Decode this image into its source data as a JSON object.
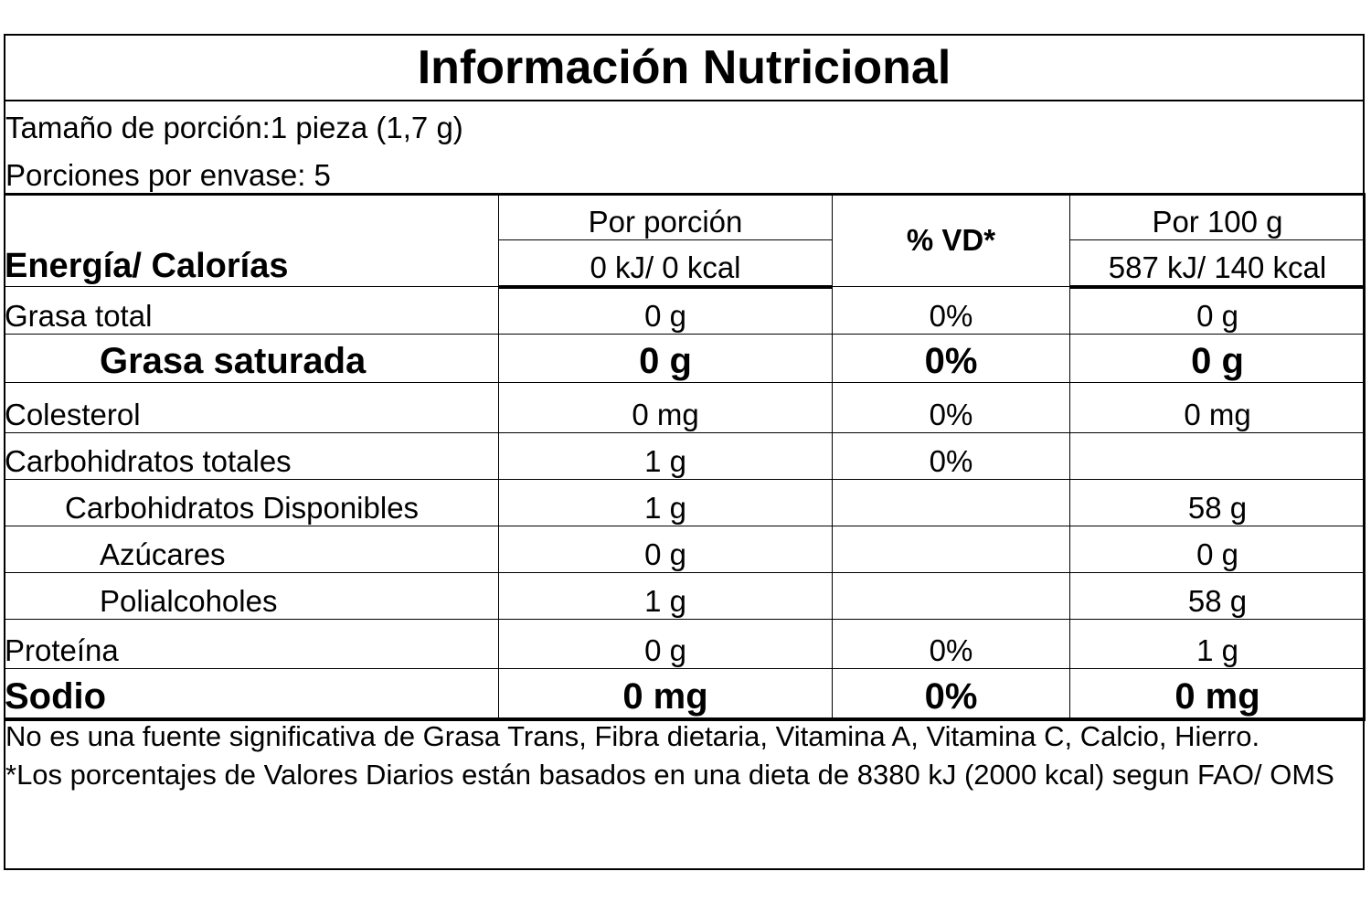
{
  "title": "Información Nutricional",
  "serving": {
    "size": "Tamaño de porción:1 pieza (1,7 g)",
    "per_container": "Porciones por envase: 5"
  },
  "headers": {
    "per_portion": "Por porción",
    "vd": "% VD*",
    "per_100": "Por 100 g",
    "energy_label": "Energía/ Calorías",
    "energy_portion": "0 kJ/ 0 kcal",
    "energy_100": "587 kJ/ 140 kcal"
  },
  "rows": [
    {
      "name": "Grasa total",
      "portion": "0 g",
      "vd": "0%",
      "per100": "0 g"
    },
    {
      "name": "Grasa saturada",
      "portion": "0 g",
      "vd": "0%",
      "per100": "0 g"
    },
    {
      "name": "Colesterol",
      "portion": "0 mg",
      "vd": "0%",
      "per100": "0 mg"
    },
    {
      "name": "Carbohidratos totales",
      "portion": "1 g",
      "vd": "0%",
      "per100": ""
    },
    {
      "name": "Carbohidratos Disponibles",
      "portion": "1 g",
      "vd": "",
      "per100": "58 g"
    },
    {
      "name": "Azúcares",
      "portion": "0 g",
      "vd": "",
      "per100": "0 g"
    },
    {
      "name": "Polialcoholes",
      "portion": "1 g",
      "vd": "",
      "per100": "58 g"
    },
    {
      "name": "Proteína",
      "portion": "0 g",
      "vd": "0%",
      "per100": "1 g"
    },
    {
      "name": "Sodio",
      "portion": "0 mg",
      "vd": "0%",
      "per100": "0 mg"
    }
  ],
  "footnotes": {
    "not_significant": "No es una fuente significativa de Grasa Trans, Fibra dietaria, Vitamina A, Vitamina C, Calcio, Hierro.",
    "daily_values": "*Los porcentajes de Valores Diarios están basados en una dieta de 8380 kJ (2000 kcal) segun FAO/ OMS"
  }
}
